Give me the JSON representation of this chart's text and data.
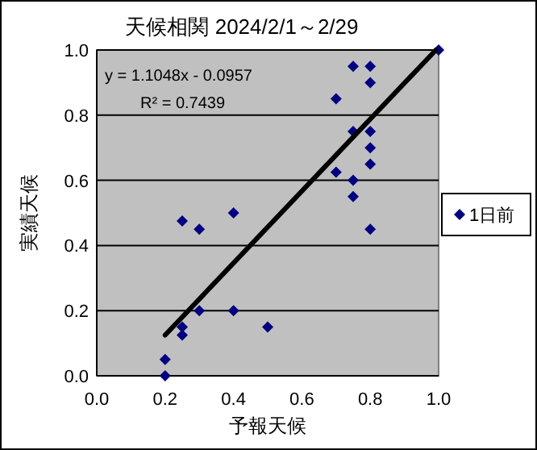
{
  "chart_data": {
    "type": "scatter",
    "title": "天候相関 2024/2/1～2/29",
    "xlabel": "予報天候",
    "ylabel": "実績天候",
    "annotations": [
      "y = 1.1048x - 0.0957",
      "R² = 0.7439"
    ],
    "xlim": [
      0,
      1
    ],
    "ylim": [
      0,
      1
    ],
    "xticks": [
      {
        "value": 0,
        "label": "0.0"
      },
      {
        "value": 0.2,
        "label": "0.2"
      },
      {
        "value": 0.4,
        "label": "0.4"
      },
      {
        "value": 0.6,
        "label": "0.6"
      },
      {
        "value": 0.8,
        "label": "0.8"
      },
      {
        "value": 1,
        "label": "1.0"
      }
    ],
    "yticks": [
      {
        "value": 0,
        "label": "0.0"
      },
      {
        "value": 0.2,
        "label": "0.2"
      },
      {
        "value": 0.4,
        "label": "0.4"
      },
      {
        "value": 0.6,
        "label": "0.6"
      },
      {
        "value": 0.8,
        "label": "0.8"
      },
      {
        "value": 1,
        "label": "1.0"
      }
    ],
    "grid": "y",
    "legend": "right",
    "series": [
      {
        "name": "1日前",
        "color": "#000080",
        "marker": "diamond",
        "x": [
          1.0,
          0.75,
          0.8,
          0.8,
          0.7,
          0.75,
          0.8,
          0.8,
          0.8,
          0.7,
          0.75,
          0.75,
          0.25,
          0.4,
          0.3,
          0.8,
          0.3,
          0.4,
          0.5,
          0.25,
          0.25,
          0.2,
          0.2
        ],
        "values": [
          1.0,
          0.95,
          0.95,
          0.9,
          0.85,
          0.75,
          0.75,
          0.7,
          0.65,
          0.625,
          0.6,
          0.55,
          0.475,
          0.5,
          0.45,
          0.45,
          0.2,
          0.2,
          0.15,
          0.15,
          0.125,
          0.05,
          0.0
        ]
      },
      {
        "type": "line",
        "color": "#000000",
        "marker": "none",
        "x": [
          0.2,
          0.992
        ],
        "values": [
          0.125,
          1.0
        ]
      }
    ]
  }
}
